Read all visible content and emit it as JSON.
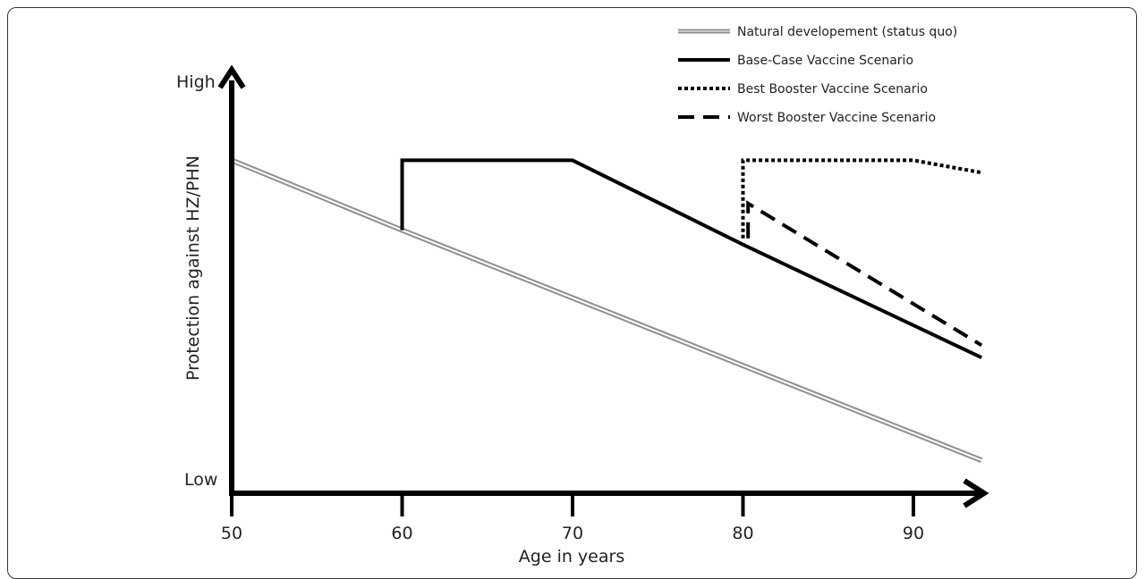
{
  "chart_data": {
    "type": "line",
    "xlabel": "Age in years",
    "ylabel": "Protection against HZ/PHN",
    "x_ticks": [
      50,
      60,
      70,
      80,
      90
    ],
    "xlim": [
      50,
      94
    ],
    "ylim": [
      0,
      100
    ],
    "y_tick_labels": {
      "high": "High",
      "low": "Low"
    },
    "legend_position": "top-right",
    "series": [
      {
        "name": "Natural developement (status quo)",
        "style": "double-gray",
        "color": "#9a9a9a",
        "points": [
          [
            50,
            81
          ],
          [
            60,
            64
          ],
          [
            94,
            8
          ]
        ]
      },
      {
        "name": "Base-Case Vaccine Scenario",
        "style": "solid",
        "color": "#000000",
        "points": [
          [
            60,
            64
          ],
          [
            60,
            81
          ],
          [
            70,
            81
          ],
          [
            80,
            60.5
          ],
          [
            94,
            33
          ]
        ]
      },
      {
        "name": "Best Booster Vaccine Scenario",
        "style": "dotted",
        "color": "#000000",
        "points": [
          [
            80,
            62
          ],
          [
            80,
            81
          ],
          [
            90,
            81
          ],
          [
            94,
            78
          ]
        ]
      },
      {
        "name": "Worst Booster Vaccine Scenario",
        "style": "dashed",
        "color": "#000000",
        "points": [
          [
            80.3,
            62
          ],
          [
            80.3,
            70.5
          ],
          [
            94,
            36
          ]
        ]
      }
    ]
  }
}
